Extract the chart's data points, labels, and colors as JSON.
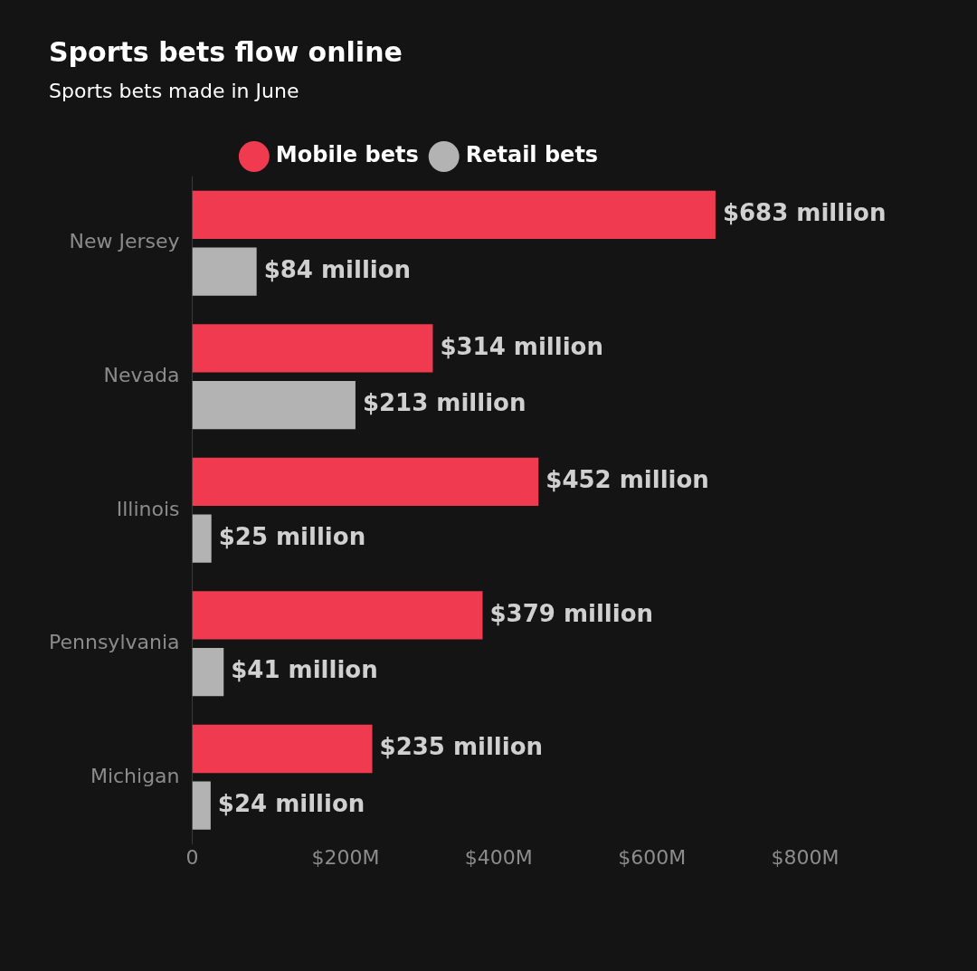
{
  "chart_data": {
    "type": "bar",
    "orientation": "horizontal",
    "title": "Sports bets flow online",
    "subtitle": "Sports bets made in June",
    "categories": [
      "New Jersey",
      "Nevada",
      "Illinois",
      "Pennsylvania",
      "Michigan"
    ],
    "series": [
      {
        "name": "Mobile bets",
        "color": "#ef3a4f",
        "values": [
          683,
          314,
          452,
          379,
          235
        ],
        "value_labels": [
          "$683 million",
          "$314 million",
          "$452 million",
          "$379 million",
          "$235 million"
        ]
      },
      {
        "name": "Retail bets",
        "color": "#b3b3b3",
        "values": [
          84,
          213,
          25,
          41,
          24
        ],
        "value_labels": [
          "$84 million",
          "$213 million",
          "$25 million",
          "$41 million",
          "$24 million"
        ]
      }
    ],
    "xlim": [
      0,
      800
    ],
    "xticks": [
      0,
      {
        "value": 200,
        "label": "$200M"
      },
      {
        "value": 400,
        "label": "$400M"
      },
      {
        "value": 600,
        "label": "$600M"
      },
      {
        "value": 800,
        "label": "$800M"
      }
    ],
    "legend": "top",
    "grid": false
  }
}
